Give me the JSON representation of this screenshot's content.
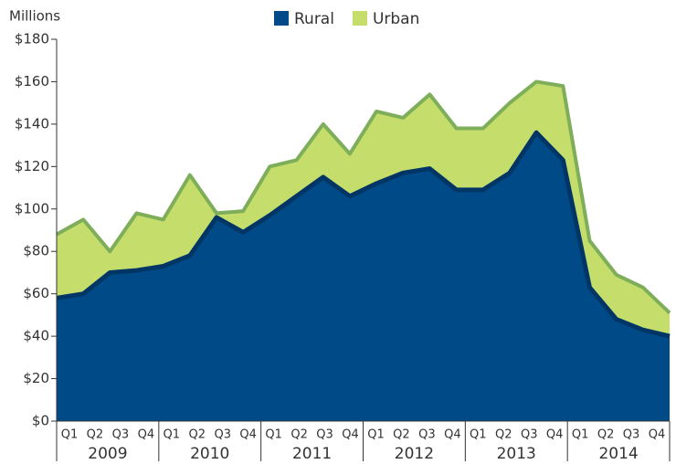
{
  "chart_data": {
    "type": "stacked_area",
    "y_label": "Millions",
    "categories": [
      "Q1",
      "Q2",
      "Q3",
      "Q4",
      "Q1",
      "Q2",
      "Q3",
      "Q4",
      "Q1",
      "Q2",
      "Q3",
      "Q4",
      "Q1",
      "Q2",
      "Q3",
      "Q4",
      "Q1",
      "Q2",
      "Q3",
      "Q4",
      "Q1",
      "Q2",
      "Q3",
      "Q4"
    ],
    "groups": [
      "2009",
      "2010",
      "2011",
      "2012",
      "2013",
      "2014"
    ],
    "series": [
      {
        "name": "Rural",
        "color": "#004b87",
        "values": [
          58,
          60,
          70,
          71,
          73,
          78,
          96,
          89,
          97,
          106,
          115,
          106,
          112,
          117,
          119,
          109,
          109,
          117,
          136,
          123,
          63,
          48,
          43,
          40
        ]
      },
      {
        "name": "Urban",
        "color": "#c5dd6a",
        "values": [
          30,
          35,
          10,
          27,
          22,
          38,
          2,
          10,
          23,
          17,
          25,
          20,
          34,
          26,
          35,
          29,
          29,
          33,
          24,
          35,
          22,
          21,
          20,
          11
        ]
      }
    ],
    "ylim": [
      0,
      180
    ],
    "yticks": [
      {
        "value": 0,
        "label": "$0"
      },
      {
        "value": 20,
        "label": "$20"
      },
      {
        "value": 40,
        "label": "$40"
      },
      {
        "value": 60,
        "label": "$60"
      },
      {
        "value": 80,
        "label": "$80"
      },
      {
        "value": 100,
        "label": "$100"
      },
      {
        "value": 120,
        "label": "$120"
      },
      {
        "value": 140,
        "label": "$140"
      },
      {
        "value": 160,
        "label": "$160"
      },
      {
        "value": 180,
        "label": "$180"
      }
    ],
    "legend": "top"
  }
}
